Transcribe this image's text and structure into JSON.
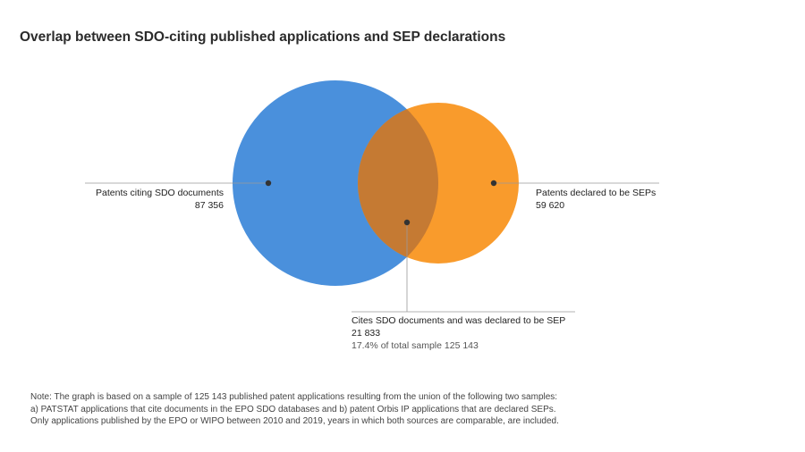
{
  "title": "Overlap between SDO-citing published applications and SEP declarations",
  "colors": {
    "left_set": "#4a90dc",
    "right_set": "#f99b2c",
    "overlap": "#c57a33",
    "leader_line": "#9a9a9a",
    "dot": "#333333"
  },
  "sets": {
    "left": {
      "label": "Patents citing SDO documents",
      "value": "87 356"
    },
    "right": {
      "label": "Patents declared to be SEPs",
      "value": "59 620"
    },
    "overlap": {
      "label": "Cites SDO documents and was declared to be SEP",
      "value": "21 833",
      "share": "17.4% of total sample 125 143"
    }
  },
  "note": {
    "line1": "Note: The graph is based on a sample of 125 143 published patent applications resulting from the union of the following two samples:",
    "line2": "a) PATSTAT applications that cite documents in the EPO SDO databases and b) patent Orbis IP applications that are declared SEPs.",
    "line3": "Only applications published by the EPO or WIPO between 2010 and 2019, years in which both sources are comparable, are included."
  }
}
